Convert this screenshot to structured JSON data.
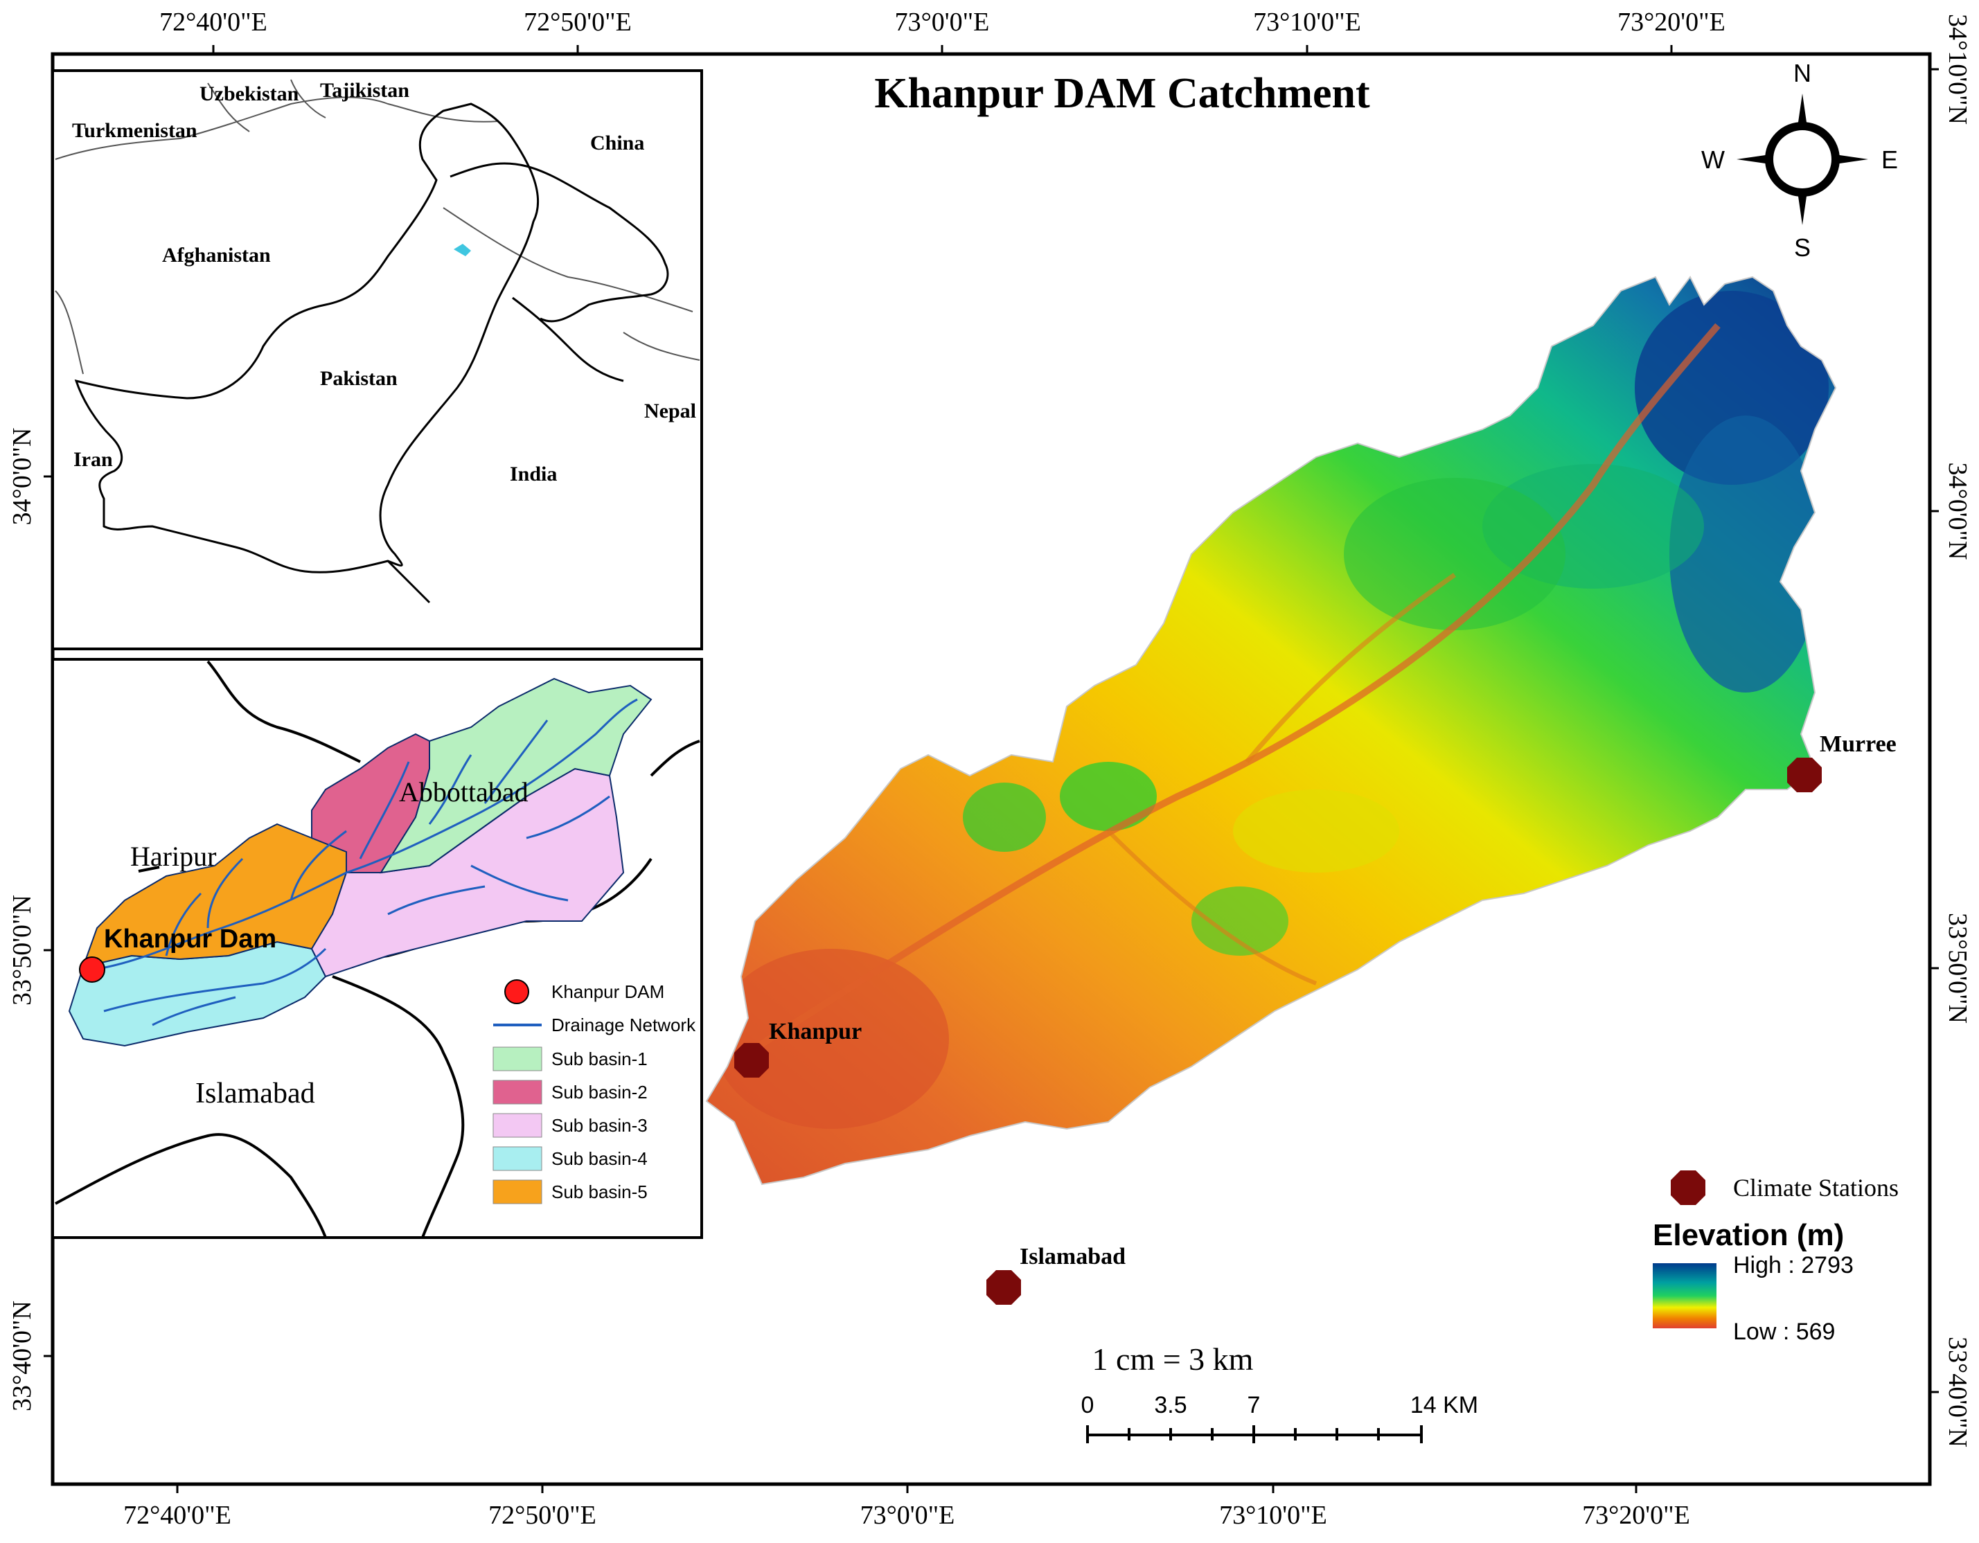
{
  "title": "Khanpur DAM Catchment",
  "top_axis": [
    "72°40'0\"E",
    "72°50'0\"E",
    "73°0'0\"E",
    "73°10'0\"E",
    "73°20'0\"E"
  ],
  "bottom_axis": [
    "72°40'0\"E",
    "72°50'0\"E",
    "73°0'0\"E",
    "73°10'0\"E",
    "73°20'0\"E"
  ],
  "left_axis": [
    "34°0'0\"N",
    "33°50'0\"N",
    "33°40'0\"N"
  ],
  "right_axis": [
    "34°10'0\"N",
    "34°0'0\"N",
    "33°50'0\"N",
    "33°40'0\"N"
  ],
  "compass": {
    "n": "N",
    "s": "S",
    "e": "E",
    "w": "W"
  },
  "overview_inset": {
    "labels": [
      "Uzbekistan",
      "Tajikistan",
      "Turkmenistan",
      "China",
      "Afghanistan",
      "Pakistan",
      "Nepal",
      "Iran",
      "India"
    ]
  },
  "detail_inset": {
    "place_labels": [
      "Abbottabad",
      "Haripur",
      "Islamabad"
    ],
    "dam_label": "Khanpur Dam",
    "legend": [
      {
        "label": "Khanpur DAM",
        "color": "#ff1a1a",
        "symbol": "circle"
      },
      {
        "label": "Drainage Network",
        "color": "#1f5fbf",
        "symbol": "line"
      },
      {
        "label": "Sub basin-1",
        "color": "#b7f0c0",
        "symbol": "box"
      },
      {
        "label": "Sub basin-2",
        "color": "#e0628f",
        "symbol": "box"
      },
      {
        "label": "Sub basin-3",
        "color": "#f3c8f3",
        "symbol": "box"
      },
      {
        "label": "Sub basin-4",
        "color": "#a8eef0",
        "symbol": "box"
      },
      {
        "label": "Sub basin-5",
        "color": "#f7a21c",
        "symbol": "box"
      }
    ]
  },
  "stations": [
    {
      "name": "Murree"
    },
    {
      "name": "Khanpur"
    },
    {
      "name": "Islamabad"
    }
  ],
  "station_legend": "Climate Stations",
  "station_color": "#7a0a0a",
  "elevation_legend": {
    "title": "Elevation (m)",
    "high": "High : 2793",
    "low": "Low : 569",
    "ramp": [
      "#003a8c",
      "#00a0a0",
      "#20d060",
      "#f0f000",
      "#f08000",
      "#e04030"
    ]
  },
  "scale": {
    "text": "1 cm = 3 km",
    "ticks": [
      "0",
      "3.5",
      "7",
      "14 KM"
    ]
  }
}
